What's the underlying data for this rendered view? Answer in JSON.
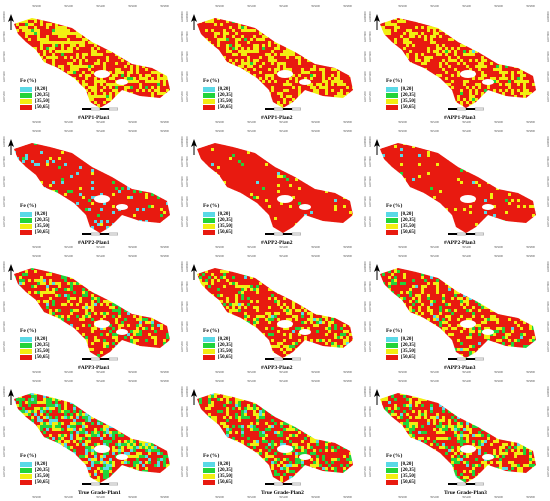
{
  "legend": {
    "title": "Fe (%)",
    "classes": [
      {
        "label": "[0,20]",
        "color": "#5ad9e6"
      },
      {
        "label": "[20,35]",
        "color": "#22d33a"
      },
      {
        "label": "[35,50]",
        "color": "#f2ee12"
      },
      {
        "label": "[50,65]",
        "color": "#e81a10"
      }
    ]
  },
  "panels": [
    {
      "id": "p1",
      "title": "#APP1-Plan1",
      "row": 0,
      "col": 0,
      "mix": [
        0,
        0.02,
        0.42,
        0.56
      ]
    },
    {
      "id": "p2",
      "title": "#APP1-Plan2",
      "row": 0,
      "col": 1,
      "mix": [
        0,
        0.02,
        0.36,
        0.62
      ]
    },
    {
      "id": "p3",
      "title": "#APP1-Plan3",
      "row": 0,
      "col": 2,
      "mix": [
        0,
        0.02,
        0.34,
        0.64
      ]
    },
    {
      "id": "p4",
      "title": "#APP2-Plan1",
      "row": 1,
      "col": 0,
      "mix": [
        0.06,
        0.02,
        0.04,
        0.88
      ]
    },
    {
      "id": "p5",
      "title": "#APP2-Plan2",
      "row": 1,
      "col": 1,
      "mix": [
        0.01,
        0.01,
        0.04,
        0.94
      ]
    },
    {
      "id": "p6",
      "title": "#APP2-Plan3",
      "row": 1,
      "col": 2,
      "mix": [
        0.01,
        0.01,
        0.04,
        0.94
      ]
    },
    {
      "id": "p7",
      "title": "#APP3-Plan1",
      "row": 2,
      "col": 0,
      "mix": [
        0.02,
        0.12,
        0.22,
        0.64
      ]
    },
    {
      "id": "p8",
      "title": "#APP3-Plan2",
      "row": 2,
      "col": 1,
      "mix": [
        0.01,
        0.1,
        0.27,
        0.62
      ]
    },
    {
      "id": "p9",
      "title": "#APP3-Plan3",
      "row": 2,
      "col": 2,
      "mix": [
        0.02,
        0.1,
        0.22,
        0.66
      ]
    },
    {
      "id": "p10",
      "title": "True Grade-Plan1",
      "row": 3,
      "col": 0,
      "mix": [
        0.12,
        0.22,
        0.2,
        0.46
      ]
    },
    {
      "id": "p11",
      "title": "True Grade-Plan2",
      "row": 3,
      "col": 1,
      "mix": [
        0.05,
        0.17,
        0.2,
        0.58
      ]
    },
    {
      "id": "p12",
      "title": "True Grade-Plan3",
      "row": 3,
      "col": 2,
      "mix": [
        0.05,
        0.14,
        0.26,
        0.55
      ]
    }
  ],
  "axis_ticks": {
    "x": [
      "395000",
      "395200",
      "395400",
      "395600",
      "395800"
    ],
    "y": [
      "4208000",
      "4207800",
      "4207600",
      "4207400",
      "4207200"
    ]
  }
}
